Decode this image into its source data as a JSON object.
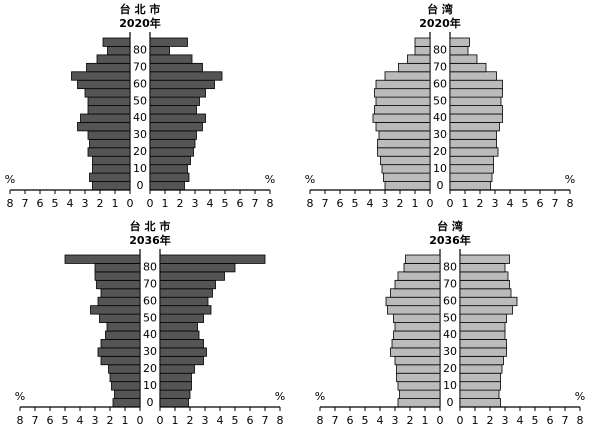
{
  "chart_data": [
    {
      "type": "pyramid",
      "title": "台 北 市",
      "subtitle": "2020年",
      "categories": [
        "0",
        null,
        "10",
        null,
        "20",
        null,
        "30",
        null,
        "40",
        null,
        "50",
        null,
        "60",
        null,
        "70",
        null,
        "80",
        null
      ],
      "series": [
        {
          "color": "#555555",
          "values": [
            2.5,
            2.7,
            2.5,
            2.5,
            2.8,
            2.7,
            2.8,
            3.5,
            3.3,
            2.8,
            2.8,
            3.0,
            3.5,
            3.9,
            2.9,
            2.2,
            1.5,
            1.8
          ]
        },
        {
          "color": "#555555",
          "values": [
            2.3,
            2.6,
            2.5,
            2.7,
            2.9,
            3.0,
            3.1,
            3.5,
            3.7,
            3.1,
            3.3,
            3.7,
            4.3,
            4.8,
            3.5,
            2.8,
            1.3,
            2.5
          ]
        }
      ],
      "xlim": [
        0,
        8
      ],
      "xticks": [
        0,
        1,
        2,
        3,
        4,
        5,
        6,
        7,
        8
      ],
      "unit": "%"
    },
    {
      "type": "pyramid",
      "title": "台 湾",
      "subtitle": "2020年",
      "categories": [
        "0",
        null,
        "10",
        null,
        "20",
        null,
        "30",
        null,
        "40",
        null,
        "50",
        null,
        "60",
        null,
        "70",
        null,
        "80",
        null
      ],
      "series": [
        {
          "color": "#bbbbbb",
          "values": [
            3.0,
            3.1,
            3.2,
            3.3,
            3.5,
            3.5,
            3.4,
            3.6,
            3.8,
            3.7,
            3.6,
            3.7,
            3.6,
            3.0,
            2.1,
            1.5,
            1.0,
            1.0
          ]
        },
        {
          "color": "#bbbbbb",
          "values": [
            2.7,
            2.8,
            2.9,
            2.9,
            3.2,
            3.1,
            3.1,
            3.3,
            3.5,
            3.5,
            3.4,
            3.5,
            3.5,
            3.1,
            2.4,
            1.8,
            1.2,
            1.3
          ]
        }
      ],
      "xlim": [
        0,
        8
      ],
      "xticks": [
        0,
        1,
        2,
        3,
        4,
        5,
        6,
        7,
        8
      ],
      "unit": "%"
    },
    {
      "type": "pyramid",
      "title": "台 北 市",
      "subtitle": "2036年",
      "categories": [
        "0",
        null,
        "10",
        null,
        "20",
        null,
        "30",
        null,
        "40",
        null,
        "50",
        null,
        "60",
        null,
        "70",
        null,
        "80",
        null
      ],
      "series": [
        {
          "color": "#555555",
          "values": [
            1.8,
            1.7,
            1.9,
            2.0,
            2.1,
            2.6,
            2.8,
            2.6,
            2.3,
            2.2,
            2.7,
            3.3,
            2.8,
            2.6,
            2.9,
            3.0,
            3.0,
            5.0
          ]
        },
        {
          "color": "#555555",
          "values": [
            1.9,
            2.0,
            2.1,
            2.1,
            2.3,
            2.9,
            3.1,
            2.9,
            2.6,
            2.5,
            2.9,
            3.4,
            3.2,
            3.5,
            3.7,
            4.3,
            5.0,
            7.0
          ]
        }
      ],
      "xlim": [
        0,
        8
      ],
      "xticks": [
        0,
        1,
        2,
        3,
        4,
        5,
        6,
        7,
        8
      ],
      "unit": "%"
    },
    {
      "type": "pyramid",
      "title": "台 湾",
      "subtitle": "2036年",
      "categories": [
        "0",
        null,
        "10",
        null,
        "20",
        null,
        "30",
        null,
        "40",
        null,
        "50",
        null,
        "60",
        null,
        "70",
        null,
        "80",
        null
      ],
      "series": [
        {
          "color": "#bbbbbb",
          "values": [
            2.8,
            2.7,
            2.8,
            2.9,
            2.9,
            3.0,
            3.3,
            3.2,
            3.1,
            3.0,
            3.1,
            3.5,
            3.6,
            3.3,
            3.0,
            2.8,
            2.4,
            2.3
          ]
        },
        {
          "color": "#bbbbbb",
          "values": [
            2.7,
            2.6,
            2.7,
            2.7,
            2.8,
            2.9,
            3.1,
            3.1,
            3.0,
            3.0,
            3.1,
            3.5,
            3.8,
            3.4,
            3.3,
            3.2,
            3.0,
            3.3
          ]
        }
      ],
      "xlim": [
        0,
        8
      ],
      "xticks": [
        0,
        1,
        2,
        3,
        4,
        5,
        6,
        7,
        8
      ],
      "unit": "%"
    }
  ]
}
